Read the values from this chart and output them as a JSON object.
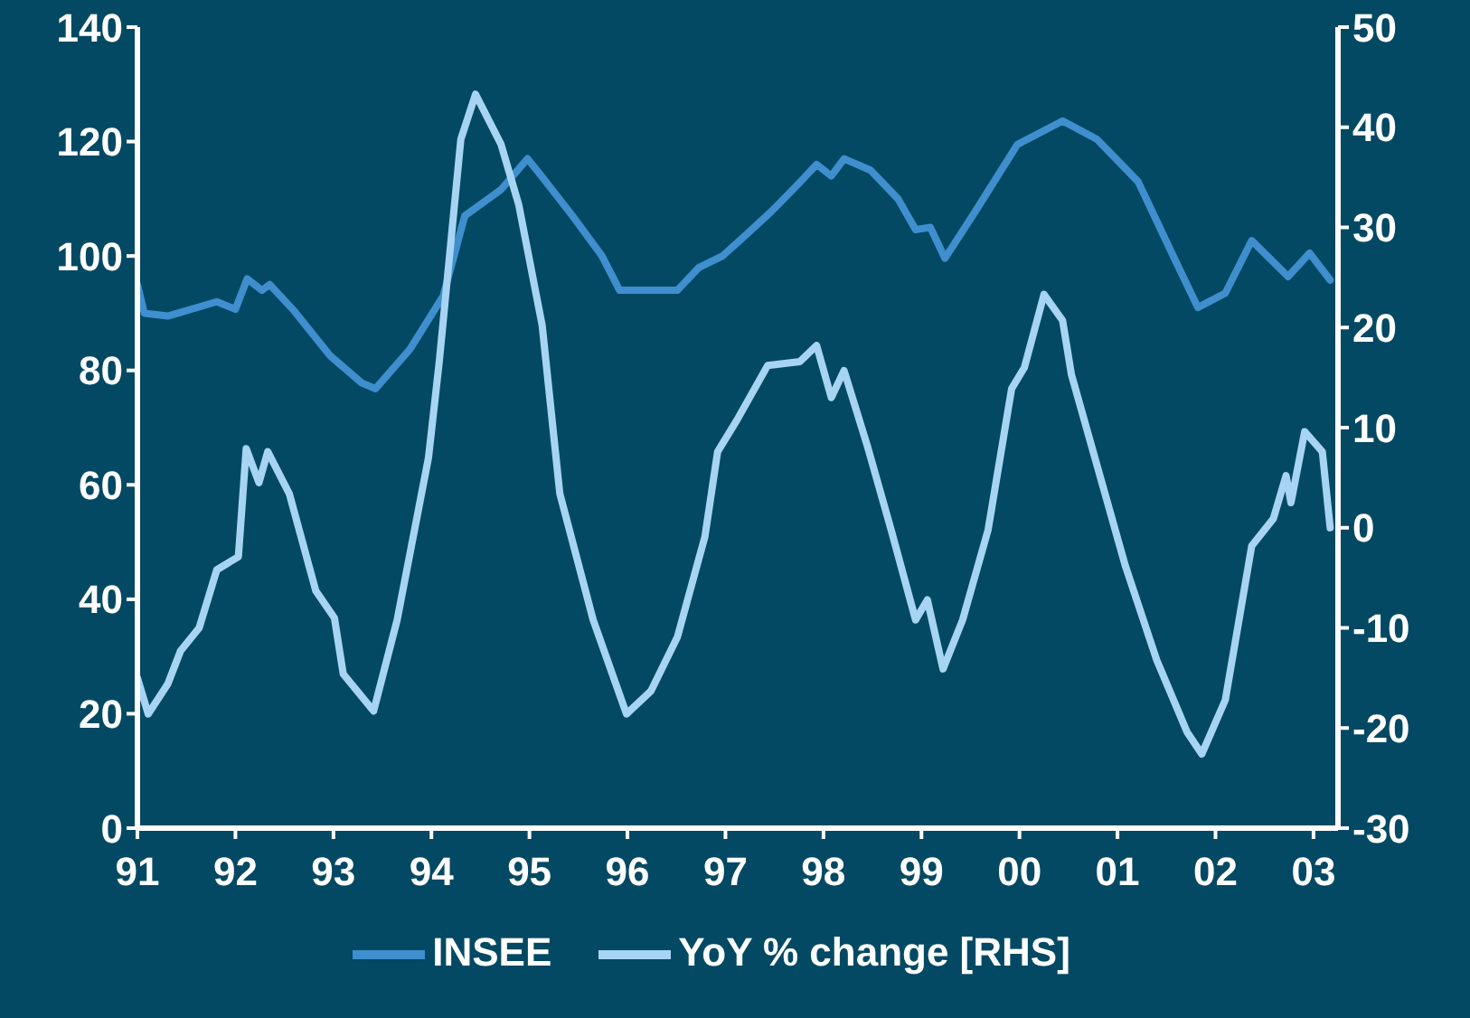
{
  "chart_data": {
    "type": "line",
    "xlim": [
      1991,
      2003.25
    ],
    "xticks": [
      {
        "value": 1991,
        "label": "91"
      },
      {
        "value": 1992,
        "label": "92"
      },
      {
        "value": 1993,
        "label": "93"
      },
      {
        "value": 1994,
        "label": "94"
      },
      {
        "value": 1995,
        "label": "95"
      },
      {
        "value": 1996,
        "label": "96"
      },
      {
        "value": 1997,
        "label": "97"
      },
      {
        "value": 1998,
        "label": "98"
      },
      {
        "value": 1999,
        "label": "99"
      },
      {
        "value": 2000,
        "label": "00"
      },
      {
        "value": 2001,
        "label": "01"
      },
      {
        "value": 2002,
        "label": "02"
      },
      {
        "value": 2003,
        "label": "03"
      }
    ],
    "ylim": [
      0,
      140
    ],
    "yticks": [
      0,
      20,
      40,
      60,
      80,
      100,
      120,
      140
    ],
    "y2lim": [
      -30,
      50
    ],
    "y2ticks": [
      -30,
      -20,
      -10,
      0,
      10,
      20,
      30,
      40,
      50
    ],
    "grid": false,
    "legend": "bottom",
    "marker": "none",
    "line_style": "solid",
    "series": [
      {
        "name": "INSEE",
        "color": "#3f8fcf",
        "x": [
          1991.0,
          1991.07,
          1991.31,
          1991.81,
          1992.0,
          1992.12,
          1992.27,
          1992.35,
          1992.6,
          1992.97,
          1993.29,
          1993.43,
          1993.78,
          1994.12,
          1994.34,
          1994.71,
          1994.98,
          1995.13,
          1995.44,
          1995.74,
          1995.92,
          1996.51,
          1996.73,
          1996.97,
          1997.21,
          1997.47,
          1997.71,
          1997.93,
          1998.08,
          1998.21,
          1998.48,
          1998.76,
          1998.94,
          1999.09,
          1999.24,
          1999.55,
          1999.98,
          2000.44,
          2000.79,
          2001.21,
          2001.58,
          2001.82,
          2002.1,
          2002.37,
          2002.74,
          2002.96,
          2003.17
        ],
        "values": [
          95,
          90,
          89.5,
          92,
          90.7,
          96,
          94,
          95,
          90.4,
          82.5,
          77.8,
          76.8,
          83.7,
          93,
          107,
          111.6,
          117,
          113.8,
          107,
          100,
          94,
          94,
          98,
          100,
          103.7,
          107.8,
          112,
          116,
          114,
          117,
          115,
          110,
          104.6,
          105,
          99.6,
          107.8,
          119.5,
          123.6,
          120.4,
          113,
          99.6,
          91,
          93.5,
          102.7,
          96.4,
          100.5,
          95.8
        ]
      },
      {
        "name": "YoY % change [RHS]",
        "color": "#a8d4f4",
        "axis": "y2",
        "x": [
          1991.0,
          1991.11,
          1991.31,
          1991.44,
          1991.63,
          1991.81,
          1992.03,
          1992.11,
          1992.24,
          1992.33,
          1992.55,
          1992.82,
          1993.01,
          1993.1,
          1993.41,
          1993.65,
          1993.97,
          1994.08,
          1994.3,
          1994.45,
          1994.71,
          1994.89,
          1995.13,
          1995.31,
          1995.65,
          1995.99,
          1996.24,
          1996.51,
          1996.79,
          1996.92,
          1997.12,
          1997.43,
          1997.76,
          1997.93,
          1998.08,
          1998.21,
          1998.45,
          1998.69,
          1998.94,
          1999.06,
          1999.22,
          1999.42,
          1999.68,
          1999.92,
          2000.05,
          2000.25,
          2000.44,
          2000.53,
          2001.08,
          2001.4,
          2001.71,
          2001.86,
          2002.1,
          2002.37,
          2002.59,
          2002.72,
          2002.77,
          2002.91,
          2003.09,
          2003.17
        ],
        "values": [
          -15,
          -18.6,
          -15.6,
          -12.3,
          -10,
          -4.2,
          -2.9,
          7.9,
          4.5,
          7.6,
          3.4,
          -6.3,
          -9,
          -14.6,
          -18.3,
          -9.2,
          7,
          16.6,
          38.8,
          43.3,
          38.3,
          32.3,
          20.2,
          3.4,
          -9.2,
          -18.6,
          -16.3,
          -10.9,
          -0.9,
          7.6,
          10.8,
          16.2,
          16.6,
          18.2,
          13,
          15.7,
          8.1,
          -0.2,
          -9.2,
          -7.2,
          -14.1,
          -9.2,
          -0.2,
          13.9,
          16,
          23.3,
          20.7,
          15.3,
          -3.8,
          -13.2,
          -20.4,
          -22.6,
          -17.2,
          -1.8,
          0.9,
          5.2,
          2.5,
          9.6,
          7.6,
          0
        ]
      }
    ]
  }
}
